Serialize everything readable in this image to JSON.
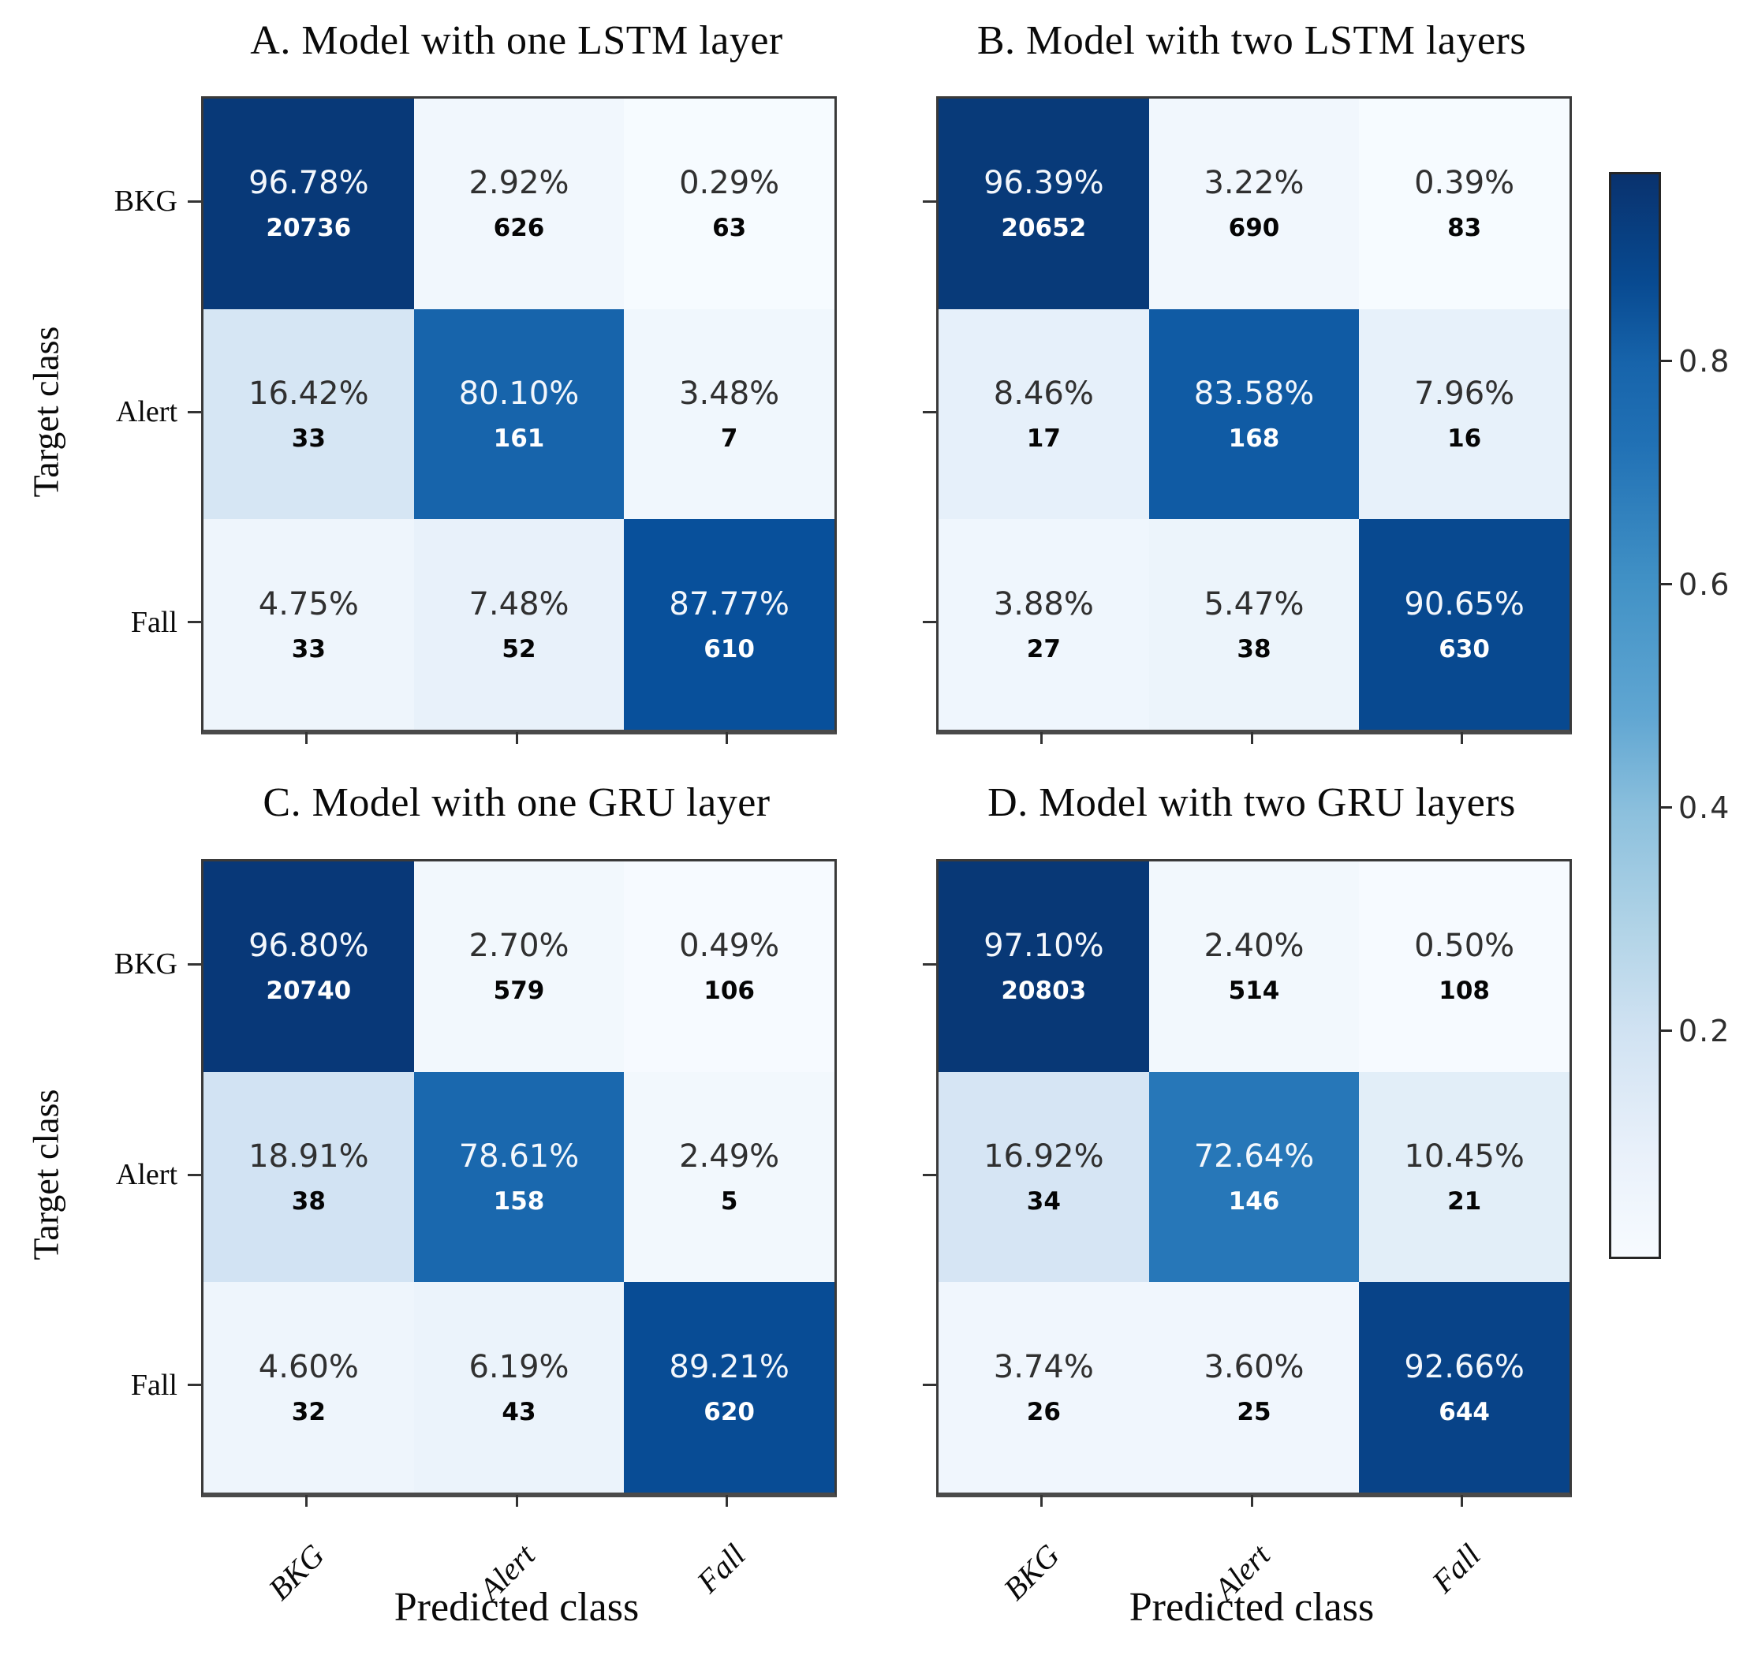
{
  "labels": {
    "xlabel": "Predicted class",
    "ylabel": "Target class"
  },
  "colorbar": {
    "colormap": "Blues",
    "vmin": 0.0,
    "vmax": 0.97,
    "tick_values": [
      0.8,
      0.6,
      0.4,
      0.2
    ],
    "tick_labels": [
      "0.8",
      "0.6",
      "0.4",
      "0.2"
    ],
    "top_color": "#0e336e",
    "bottom_color": "#f7fbff"
  },
  "chart_data": [
    {
      "type": "heatmap",
      "panel": "A",
      "title": "A. Model with one LSTM layer",
      "xlabel": "Predicted class",
      "ylabel": "Target class",
      "x_categories": [
        "BKG",
        "Alert",
        "Fall"
      ],
      "y_categories": [
        "BKG",
        "Alert",
        "Fall"
      ],
      "percent": [
        [
          96.78,
          2.92,
          0.29
        ],
        [
          16.42,
          80.1,
          3.48
        ],
        [
          4.75,
          7.48,
          87.77
        ]
      ],
      "counts": [
        [
          20736,
          626,
          63
        ],
        [
          33,
          161,
          7
        ],
        [
          33,
          52,
          610
        ]
      ]
    },
    {
      "type": "heatmap",
      "panel": "B",
      "title": "B. Model with two LSTM layers",
      "xlabel": "Predicted class",
      "ylabel": "Target class",
      "x_categories": [
        "BKG",
        "Alert",
        "Fall"
      ],
      "y_categories": [
        "BKG",
        "Alert",
        "Fall"
      ],
      "percent": [
        [
          96.39,
          3.22,
          0.39
        ],
        [
          8.46,
          83.58,
          7.96
        ],
        [
          3.88,
          5.47,
          90.65
        ]
      ],
      "counts": [
        [
          20652,
          690,
          83
        ],
        [
          17,
          168,
          16
        ],
        [
          27,
          38,
          630
        ]
      ]
    },
    {
      "type": "heatmap",
      "panel": "C",
      "title": "C. Model with one GRU layer",
      "xlabel": "Predicted class",
      "ylabel": "Target class",
      "x_categories": [
        "BKG",
        "Alert",
        "Fall"
      ],
      "y_categories": [
        "BKG",
        "Alert",
        "Fall"
      ],
      "percent": [
        [
          96.8,
          2.7,
          0.49
        ],
        [
          18.91,
          78.61,
          2.49
        ],
        [
          4.6,
          6.19,
          89.21
        ]
      ],
      "counts": [
        [
          20740,
          579,
          106
        ],
        [
          38,
          158,
          5
        ],
        [
          32,
          43,
          620
        ]
      ]
    },
    {
      "type": "heatmap",
      "panel": "D",
      "title": "D. Model with two GRU layers",
      "xlabel": "Predicted class",
      "ylabel": "Target class",
      "x_categories": [
        "BKG",
        "Alert",
        "Fall"
      ],
      "y_categories": [
        "BKG",
        "Alert",
        "Fall"
      ],
      "percent": [
        [
          97.1,
          2.4,
          0.5
        ],
        [
          16.92,
          72.64,
          10.45
        ],
        [
          3.74,
          3.6,
          92.66
        ]
      ],
      "counts": [
        [
          20803,
          514,
          108
        ],
        [
          34,
          146,
          21
        ],
        [
          26,
          25,
          644
        ]
      ]
    }
  ]
}
